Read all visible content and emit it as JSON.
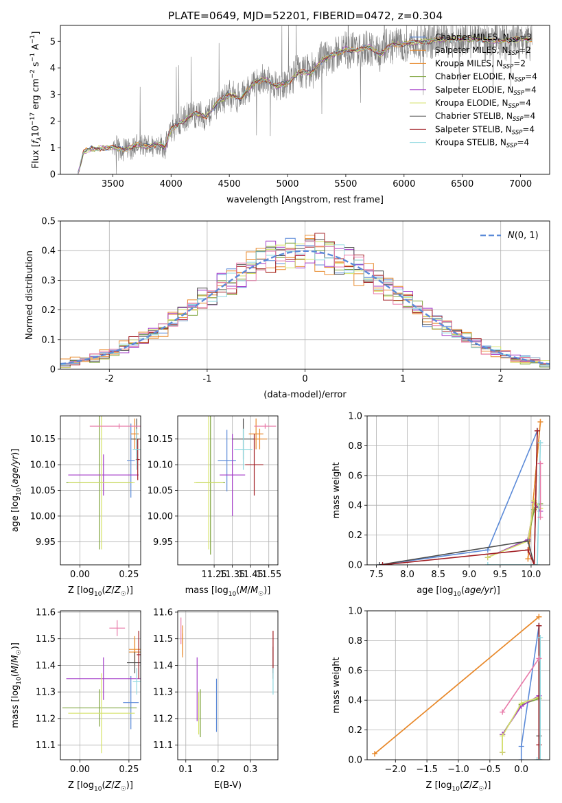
{
  "figure_title": "PLATE=0649, MJD=52201, FIBERID=0472, z=0.304",
  "colors": {
    "Chabrier MILES": "#5b8ad8",
    "Salpeter MILES": "#e8892b",
    "Kroupa MILES": "#e8892b",
    "Chabrier ELODIE": "#7da33a",
    "Salpeter ELODIE": "#a43cc8",
    "Kroupa ELODIE": "#d6e26a",
    "Chabrier STELIB": "#4d4d4d",
    "Salpeter STELIB": "#a01c22",
    "Kroupa STELIB": "#8fd8e0",
    "pink": "#e879a8",
    "spectrum": "#7f7f7f"
  },
  "chart_data": [
    {
      "id": "spectrum",
      "type": "line",
      "title": "PLATE=0649, MJD=52201, FIBERID=0472, z=0.304",
      "xlabel": "wavelength [Angstrom, rest frame]",
      "ylabel_main": "Flux [",
      "ylabel_rest": "10",
      "ylabel_units": " erg cm",
      "xlim": [
        3050,
        7250
      ],
      "ylim": [
        0,
        5.6
      ],
      "xticks": [
        3500,
        4000,
        4500,
        5000,
        5500,
        6000,
        6500,
        7000
      ],
      "yticks": [
        0,
        1,
        2,
        3,
        4,
        5
      ],
      "grid": false,
      "legend_position": "upper right",
      "continuum": {
        "x": [
          3200,
          3250,
          3300,
          3400,
          3500,
          3600,
          3700,
          3800,
          3900,
          3950,
          4000,
          4100,
          4200,
          4300,
          4400,
          4500,
          4600,
          4700,
          4800,
          4900,
          5000,
          5100,
          5200,
          5300,
          5400,
          5500,
          5600,
          5700,
          5800,
          5900,
          6000,
          6200,
          6400,
          6600,
          6800,
          7000,
          7100
        ],
        "y": [
          0,
          0.85,
          0.95,
          0.98,
          1.0,
          0.95,
          1.1,
          1.05,
          1.15,
          1.0,
          1.7,
          2.0,
          2.3,
          2.15,
          2.7,
          3.0,
          2.85,
          3.4,
          3.6,
          3.3,
          3.45,
          3.85,
          3.8,
          4.3,
          4.5,
          4.7,
          4.65,
          4.8,
          4.5,
          4.9,
          4.9,
          5.0,
          5.1,
          5.1,
          5.0,
          5.1,
          5.05
        ]
      },
      "legend": [
        {
          "model": "Chabrier MILES",
          "nssp": 3
        },
        {
          "model": "Salpeter MILES",
          "nssp": 2
        },
        {
          "model": "Kroupa MILES",
          "nssp": 2
        },
        {
          "model": "Chabrier ELODIE",
          "nssp": 4
        },
        {
          "model": "Salpeter ELODIE",
          "nssp": 4
        },
        {
          "model": "Kroupa ELODIE",
          "nssp": 4
        },
        {
          "model": "Chabrier STELIB",
          "nssp": 4
        },
        {
          "model": "Salpeter STELIB",
          "nssp": 4
        },
        {
          "model": "Kroupa STELIB",
          "nssp": 4
        }
      ],
      "legend_label_prefix": ", N",
      "legend_label_sub": "SSP"
    },
    {
      "id": "residuals",
      "type": "line",
      "xlabel": "(data-model)/error",
      "ylabel": "Normed distribution",
      "xlim": [
        -2.5,
        2.5
      ],
      "ylim": [
        0,
        0.5
      ],
      "xticks": [
        -2,
        -1,
        0,
        1,
        2
      ],
      "yticks": [
        0,
        0.1,
        0.2,
        0.3,
        0.4,
        0.5
      ],
      "grid": true,
      "legend_position": "upper right",
      "gaussian_label": "N(0, 1)",
      "histogram_bins": 50
    },
    {
      "id": "age-vs-Z",
      "type": "scatter",
      "xlabel": "Z [log10(Z/Z☉)]",
      "ylabel": "age  [log10(age/yr)]",
      "xlim": [
        -0.1,
        0.31
      ],
      "ylim": [
        9.905,
        10.195
      ],
      "xticks": [
        0,
        0.25
      ],
      "xticklabels": [
        "0.00",
        "0.25"
      ],
      "yticks": [
        9.95,
        10.0,
        10.05,
        10.1,
        10.15
      ],
      "yticklabels": [
        "9.95",
        "10.00",
        "10.05",
        "10.10",
        "10.15"
      ],
      "grid": true,
      "points": [
        {
          "model": "Chabrier MILES",
          "x": 0.26,
          "xerr": 0.02,
          "y": 10.108,
          "yerr": 0.072
        },
        {
          "model": "Salpeter MILES",
          "x": 0.29,
          "xerr": 0.02,
          "y": 10.15,
          "yerr": 0.02
        },
        {
          "model": "Kroupa MILES",
          "x": 0.28,
          "xerr": 0.02,
          "y": 10.16,
          "yerr": 0.03
        },
        {
          "model": "Chabrier ELODIE",
          "x": 0.1,
          "xerr": 0.17,
          "y": 10.065,
          "yerr": 0.13
        },
        {
          "model": "Salpeter ELODIE",
          "x": 0.12,
          "xerr": 0.18,
          "y": 10.08,
          "yerr": 0.04
        },
        {
          "model": "Kroupa ELODIE",
          "x": 0.11,
          "xerr": 0.17,
          "y": 10.065,
          "yerr": 0.13
        },
        {
          "model": "Chabrier STELIB",
          "x": 0.29,
          "xerr": 0.03,
          "y": 10.15,
          "yerr": 0.04
        },
        {
          "model": "Salpeter STELIB",
          "x": 0.295,
          "xerr": 0.01,
          "y": 10.11,
          "yerr": 0.04
        },
        {
          "model": "Kroupa STELIB",
          "x": 0.29,
          "xerr": 0.02,
          "y": 10.13,
          "yerr": 0.04
        },
        {
          "model": "pink",
          "x": 0.2,
          "xerr": 0.15,
          "y": 10.175,
          "yerr": 0.005
        }
      ]
    },
    {
      "id": "age-vs-mass",
      "type": "scatter",
      "xlabel": "mass [log10(M/M☉)]",
      "xlim": [
        11.05,
        11.6
      ],
      "ylim": [
        9.905,
        10.195
      ],
      "xticks": [
        11.25,
        11.35,
        11.45,
        11.55
      ],
      "xticklabels": [
        "11.25",
        "11.35",
        "11.45",
        "11.55"
      ],
      "yticks": [
        9.95,
        10.0,
        10.05,
        10.1,
        10.15
      ],
      "yticklabels": [
        "9.95",
        "10.00",
        "10.05",
        "10.10",
        "10.15"
      ],
      "grid": true,
      "points": [
        {
          "model": "Chabrier MILES",
          "x": 11.32,
          "xerr": 0.05,
          "y": 10.108,
          "yerr": 0.06
        },
        {
          "model": "Salpeter MILES",
          "x": 11.5,
          "xerr": 0.04,
          "y": 10.15,
          "yerr": 0.02
        },
        {
          "model": "Kroupa MILES",
          "x": 11.48,
          "xerr": 0.04,
          "y": 10.16,
          "yerr": 0.03
        },
        {
          "model": "Chabrier ELODIE",
          "x": 11.23,
          "xerr": 0.08,
          "y": 10.065,
          "yerr": 0.14
        },
        {
          "model": "Salpeter ELODIE",
          "x": 11.35,
          "xerr": 0.07,
          "y": 10.08,
          "yerr": 0.08
        },
        {
          "model": "Kroupa ELODIE",
          "x": 11.22,
          "xerr": 0.08,
          "y": 10.065,
          "yerr": 0.13
        },
        {
          "model": "Chabrier STELIB",
          "x": 11.41,
          "xerr": 0.06,
          "y": 10.15,
          "yerr": 0.04
        },
        {
          "model": "Salpeter STELIB",
          "x": 11.47,
          "xerr": 0.05,
          "y": 10.1,
          "yerr": 0.06
        },
        {
          "model": "Kroupa STELIB",
          "x": 11.41,
          "xerr": 0.05,
          "y": 10.13,
          "yerr": 0.04
        },
        {
          "model": "pink",
          "x": 11.53,
          "xerr": 0.06,
          "y": 10.175,
          "yerr": 0.005
        }
      ]
    },
    {
      "id": "mass-weight-vs-age",
      "type": "line",
      "xlabel": "age  [log10(age/yr)]",
      "ylabel": "mass weight",
      "xlim": [
        7.35,
        10.3
      ],
      "ylim": [
        0,
        1
      ],
      "xticks": [
        7.5,
        8.0,
        8.5,
        9.0,
        9.5,
        10.0
      ],
      "xticklabels": [
        "7.5",
        "8.0",
        "8.5",
        "9.0",
        "9.5",
        "10.0"
      ],
      "yticks": [
        0,
        0.2,
        0.4,
        0.6,
        0.8,
        1.0
      ],
      "yticklabels": [
        "0.0",
        "0.2",
        "0.4",
        "0.6",
        "0.8",
        "1.0"
      ],
      "grid": true,
      "series": [
        {
          "model": "Chabrier MILES",
          "x": [
            7.55,
            9.3,
            10.1
          ],
          "y": [
            0.0,
            0.1,
            0.9
          ]
        },
        {
          "model": "Salpeter MILES",
          "x": [
            9.95,
            10.15
          ],
          "y": [
            0.04,
            0.96
          ]
        },
        {
          "model": "Kroupa MILES",
          "x": [
            9.95,
            10.15
          ],
          "y": [
            0.04,
            0.96
          ]
        },
        {
          "model": "Chabrier ELODIE",
          "x": [
            9.3,
            9.95,
            10.05,
            10.15
          ],
          "y": [
            0.05,
            0.17,
            0.37,
            0.41
          ]
        },
        {
          "model": "Salpeter ELODIE",
          "x": [
            9.3,
            9.95,
            10.05,
            10.15
          ],
          "y": [
            0.05,
            0.17,
            0.42,
            0.36
          ]
        },
        {
          "model": "Kroupa ELODIE",
          "x": [
            9.3,
            9.95,
            10.05,
            10.15
          ],
          "y": [
            0.05,
            0.16,
            0.43,
            0.38
          ]
        },
        {
          "model": "Chabrier STELIB",
          "x": [
            7.55,
            9.95,
            10.05,
            10.1
          ],
          "y": [
            0.0,
            0.16,
            0.0,
            0.9
          ]
        },
        {
          "model": "Salpeter STELIB",
          "x": [
            7.6,
            9.95,
            10.05,
            10.1
          ],
          "y": [
            0.0,
            0.1,
            0.0,
            0.9
          ]
        },
        {
          "model": "Kroupa STELIB",
          "x": [
            9.3,
            10.1,
            10.15
          ],
          "y": [
            0.0,
            0.0,
            0.82
          ]
        },
        {
          "model": "pink",
          "x": [
            10.15,
            10.15
          ],
          "y": [
            0.32,
            0.68
          ]
        }
      ]
    },
    {
      "id": "mass-vs-Z",
      "type": "scatter",
      "xlabel": "Z [log10(Z/Z☉)]",
      "ylabel": "mass [log10(M/M☉)]",
      "xlim": [
        -0.1,
        0.31
      ],
      "ylim": [
        11.045,
        11.605
      ],
      "xticks": [
        0,
        0.25
      ],
      "xticklabels": [
        "0.00",
        "0.25"
      ],
      "yticks": [
        11.1,
        11.2,
        11.3,
        11.4,
        11.5,
        11.6
      ],
      "yticklabels": [
        "11.1",
        "11.2",
        "11.3",
        "11.4",
        "11.5",
        "11.6"
      ],
      "grid": true,
      "points": [
        {
          "model": "Chabrier MILES",
          "x": 0.26,
          "xerr": 0.04,
          "y": 11.26,
          "yerr": 0.1
        },
        {
          "model": "Salpeter MILES",
          "x": 0.28,
          "xerr": 0.03,
          "y": 11.46,
          "yerr": 0.05
        },
        {
          "model": "Kroupa MILES",
          "x": 0.28,
          "xerr": 0.03,
          "y": 11.45,
          "yerr": 0.05
        },
        {
          "model": "Chabrier ELODIE",
          "x": 0.1,
          "xerr": 0.19,
          "y": 11.24,
          "yerr": 0.07
        },
        {
          "model": "Salpeter ELODIE",
          "x": 0.12,
          "xerr": 0.19,
          "y": 11.35,
          "yerr": 0.08
        },
        {
          "model": "Kroupa ELODIE",
          "x": 0.11,
          "xerr": 0.17,
          "y": 11.22,
          "yerr": 0.15
        },
        {
          "model": "Chabrier STELIB",
          "x": 0.28,
          "xerr": 0.04,
          "y": 11.41,
          "yerr": 0.04
        },
        {
          "model": "Salpeter STELIB",
          "x": 0.3,
          "xerr": 0.01,
          "y": 11.44,
          "yerr": 0.09
        },
        {
          "model": "Kroupa STELIB",
          "x": 0.29,
          "xerr": 0.02,
          "y": 11.34,
          "yerr": 0.05
        },
        {
          "model": "pink",
          "x": 0.19,
          "xerr": 0.04,
          "y": 11.54,
          "yerr": 0.03
        }
      ]
    },
    {
      "id": "mass-vs-ebv",
      "type": "scatter",
      "xlabel": "E(B-V)",
      "xlim": [
        0.075,
        0.385
      ],
      "ylim": [
        11.045,
        11.605
      ],
      "xticks": [
        0.1,
        0.2,
        0.3
      ],
      "xticklabels": [
        "0.1",
        "0.2",
        "0.3"
      ],
      "yticks": [
        11.1,
        11.2,
        11.3,
        11.4,
        11.5,
        11.6
      ],
      "yticklabels": [
        "11.1",
        "11.2",
        "11.3",
        "11.4",
        "11.5",
        "11.6"
      ],
      "grid": true,
      "points": [
        {
          "model": "Chabrier MILES",
          "x": 0.195,
          "xerr": 0,
          "y": 11.25,
          "yerr": 0.1
        },
        {
          "model": "Salpeter MILES",
          "x": 0.09,
          "xerr": 0,
          "y": 11.49,
          "yerr": 0.06
        },
        {
          "model": "Kroupa MILES",
          "x": 0.09,
          "xerr": 0,
          "y": 11.48,
          "yerr": 0.04
        },
        {
          "model": "Chabrier ELODIE",
          "x": 0.145,
          "xerr": 0,
          "y": 11.22,
          "yerr": 0.09
        },
        {
          "model": "Salpeter ELODIE",
          "x": 0.135,
          "xerr": 0,
          "y": 11.31,
          "yerr": 0.12
        },
        {
          "model": "Kroupa ELODIE",
          "x": 0.14,
          "xerr": 0,
          "y": 11.22,
          "yerr": 0.08
        },
        {
          "model": "Chabrier STELIB",
          "x": 0.37,
          "xerr": 0,
          "y": 11.42,
          "yerr": 0.05
        },
        {
          "model": "Salpeter STELIB",
          "x": 0.37,
          "xerr": 0,
          "y": 11.44,
          "yerr": 0.09
        },
        {
          "model": "Kroupa STELIB",
          "x": 0.37,
          "xerr": 0,
          "y": 11.34,
          "yerr": 0.05
        },
        {
          "model": "pink",
          "x": 0.085,
          "xerr": 0,
          "y": 11.53,
          "yerr": 0.05
        }
      ]
    },
    {
      "id": "mass-weight-vs-Z",
      "type": "line",
      "xlabel": "Z [log10(Z/Z☉)]",
      "ylabel": "mass weight",
      "xlim": [
        -2.45,
        0.45
      ],
      "ylim": [
        0,
        1
      ],
      "xticks": [
        -2.0,
        -1.5,
        -1.0,
        -0.5,
        0.0
      ],
      "xticklabels": [
        "−2.0",
        "−1.5",
        "−1.0",
        "−0.5",
        "0.0"
      ],
      "yticks": [
        0,
        0.2,
        0.4,
        0.6,
        0.8,
        1.0
      ],
      "yticklabels": [
        "0.0",
        "0.2",
        "0.4",
        "0.6",
        "0.8",
        "1.0"
      ],
      "grid": true,
      "series": [
        {
          "model": "Chabrier MILES",
          "x": [
            0.0,
            0.0,
            0.28
          ],
          "y": [
            0.0,
            0.09,
            0.9
          ]
        },
        {
          "model": "Salpeter MILES",
          "x": [
            -2.33,
            0.28
          ],
          "y": [
            0.04,
            0.96
          ]
        },
        {
          "model": "Kroupa MILES",
          "x": [
            -2.33,
            0.28
          ],
          "y": [
            0.04,
            0.96
          ]
        },
        {
          "model": "Chabrier ELODIE",
          "x": [
            -0.3,
            -0.3,
            0.0,
            0.28
          ],
          "y": [
            0.05,
            0.17,
            0.37,
            0.41
          ]
        },
        {
          "model": "Salpeter ELODIE",
          "x": [
            -0.3,
            -0.3,
            0.0,
            0.28
          ],
          "y": [
            0.05,
            0.17,
            0.36,
            0.43
          ]
        },
        {
          "model": "Kroupa ELODIE",
          "x": [
            -0.3,
            -0.3,
            0.0,
            0.28
          ],
          "y": [
            0.05,
            0.16,
            0.38,
            0.42
          ]
        },
        {
          "model": "Chabrier STELIB",
          "x": [
            0.28,
            0.28,
            0.28
          ],
          "y": [
            0.0,
            0.16,
            0.9
          ]
        },
        {
          "model": "Salpeter STELIB",
          "x": [
            0.28,
            0.28,
            0.28
          ],
          "y": [
            0.1,
            0.0,
            0.9
          ]
        },
        {
          "model": "Kroupa STELIB",
          "x": [
            0.25,
            0.3,
            0.3
          ],
          "y": [
            0.0,
            0.0,
            0.82
          ]
        },
        {
          "model": "pink",
          "x": [
            -0.3,
            0.28
          ],
          "y": [
            0.32,
            0.68
          ]
        }
      ]
    }
  ]
}
